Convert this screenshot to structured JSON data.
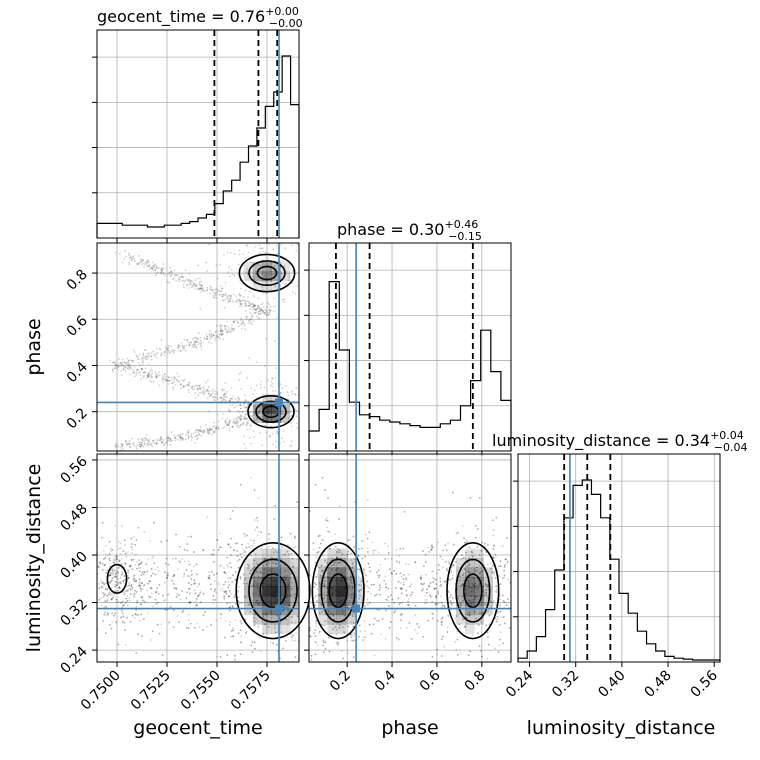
{
  "chart_data": {
    "type": "corner",
    "parameters": [
      "geocent_time",
      "phase",
      "luminosity_distance"
    ],
    "truth": {
      "geocent_time": 0.7581,
      "phase": 0.24,
      "luminosity_distance": 0.31
    },
    "titles": [
      {
        "name": "geocent_time",
        "median": "0.76",
        "plus": "+0.00",
        "minus": "−0.00"
      },
      {
        "name": "phase",
        "median": "0.30",
        "plus": "+0.46",
        "minus": "−0.15"
      },
      {
        "name": "luminosity_distance",
        "median": "0.34",
        "plus": "+0.04",
        "minus": "−0.04"
      }
    ],
    "axes": {
      "geocent_time": {
        "range": [
          0.749,
          0.7591
        ],
        "ticks": [
          0.75,
          0.7525,
          0.755,
          0.7575
        ],
        "tick_labels": [
          "0.7500",
          "0.7525",
          "0.7550",
          "0.7575"
        ]
      },
      "phase": {
        "range": [
          0.03,
          0.93
        ],
        "ticks": [
          0.2,
          0.4,
          0.6,
          0.8
        ],
        "tick_labels": [
          "0.2",
          "0.4",
          "0.6",
          "0.8"
        ]
      },
      "luminosity_distance": {
        "range": [
          0.22,
          0.57
        ],
        "ticks": [
          0.24,
          0.32,
          0.4,
          0.48,
          0.56
        ],
        "tick_labels": [
          "0.24",
          "0.32",
          "0.40",
          "0.48",
          "0.56"
        ]
      }
    },
    "histograms": {
      "geocent_time": {
        "edges_range": [
          0.749,
          0.7591
        ],
        "counts": [
          0.07,
          0.07,
          0.07,
          0.06,
          0.06,
          0.06,
          0.05,
          0.05,
          0.06,
          0.06,
          0.07,
          0.08,
          0.1,
          0.12,
          0.18,
          0.25,
          0.31,
          0.41,
          0.5,
          0.6,
          0.72,
          0.8,
          1.0,
          0.73
        ],
        "quantiles": [
          0.75487,
          0.75707,
          0.75801
        ]
      },
      "phase": {
        "edges_range": [
          0.03,
          0.93
        ],
        "counts": [
          0.1,
          0.22,
          0.93,
          0.55,
          0.26,
          0.19,
          0.18,
          0.16,
          0.15,
          0.14,
          0.13,
          0.12,
          0.12,
          0.14,
          0.16,
          0.24,
          0.38,
          0.66,
          0.43,
          0.27
        ],
        "quantiles": [
          0.15,
          0.3,
          0.76
        ]
      },
      "luminosity_distance": {
        "edges_range": [
          0.22,
          0.57
        ],
        "counts": [
          0.01,
          0.05,
          0.13,
          0.28,
          0.5,
          0.79,
          0.97,
          1.0,
          0.92,
          0.79,
          0.56,
          0.37,
          0.26,
          0.16,
          0.09,
          0.05,
          0.02,
          0.01,
          0.005,
          0.0,
          0.0,
          0.0
        ],
        "quantiles": [
          0.3,
          0.34,
          0.38
        ]
      }
    },
    "joint": {
      "phase_vs_geocent_time": {
        "modes": [
          {
            "x": 0.7577,
            "y": 0.2,
            "sx": 0.0005,
            "sy": 0.03,
            "w": 1.0
          },
          {
            "x": 0.7575,
            "y": 0.8,
            "sx": 0.0006,
            "sy": 0.035,
            "w": 0.55
          }
        ],
        "ridge": [
          [
            0.7504,
            0.88
          ],
          [
            0.754,
            0.75
          ],
          [
            0.7575,
            0.63
          ],
          [
            0.754,
            0.5
          ],
          [
            0.75,
            0.4
          ],
          [
            0.754,
            0.3
          ],
          [
            0.7575,
            0.2
          ],
          [
            0.754,
            0.1
          ],
          [
            0.75,
            0.05
          ]
        ]
      },
      "luminosity_distance_vs_geocent_time": {
        "modes": [
          {
            "x": 0.7578,
            "y": 0.34,
            "sx": 0.0008,
            "sy": 0.035,
            "w": 1.0
          },
          {
            "x": 0.75,
            "y": 0.36,
            "sx": 0.0004,
            "sy": 0.02,
            "w": 0.1
          }
        ]
      },
      "luminosity_distance_vs_phase": {
        "modes": [
          {
            "x": 0.16,
            "y": 0.34,
            "sx": 0.05,
            "sy": 0.035,
            "w": 1.0
          },
          {
            "x": 0.76,
            "y": 0.34,
            "sx": 0.05,
            "sy": 0.035,
            "w": 0.7
          }
        ]
      }
    }
  }
}
